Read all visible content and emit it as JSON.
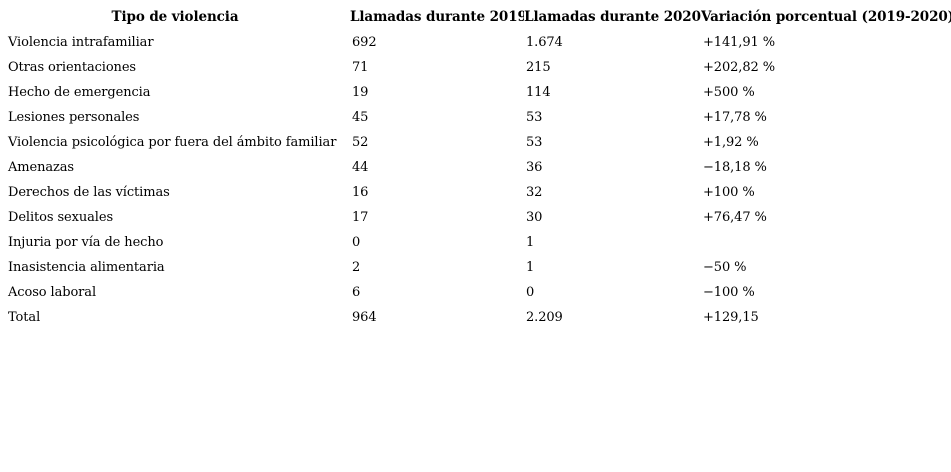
{
  "chart_data": {
    "type": "table",
    "columns": [
      "Tipo de violencia",
      "Llamadas durante 2019",
      "Llamadas durante 2020",
      "Variación porcentual (2019-2020)"
    ],
    "rows": [
      [
        "Violencia intrafamiliar",
        "692",
        "1.674",
        "+141,91 %"
      ],
      [
        "Otras orientaciones",
        "71",
        "215",
        "+202,82 %"
      ],
      [
        "Hecho de emergencia",
        "19",
        "114",
        "+500 %"
      ],
      [
        "Lesiones personales",
        "45",
        "53",
        "+17,78 %"
      ],
      [
        "Violencia psicológica por fuera del ámbito familiar",
        "52",
        "53",
        "+1,92 %"
      ],
      [
        "Amenazas",
        "44",
        "36",
        "−18,18 %"
      ],
      [
        "Derechos de las víctimas",
        "16",
        "32",
        "+100 %"
      ],
      [
        "Delitos sexuales",
        "17",
        "30",
        "+76,47 %"
      ],
      [
        "Injuria por vía de hecho",
        "0",
        "1",
        ""
      ],
      [
        "Inasistencia alimentaria",
        "2",
        "1",
        "−50 %"
      ],
      [
        "Acoso laboral",
        "6",
        "0",
        "−100 %"
      ],
      [
        "Total",
        "964",
        "2.209",
        "+129,15"
      ]
    ],
    "layout": {
      "grid": "off",
      "header_style": "bold",
      "first_column_align": "left",
      "header_align": "center"
    }
  },
  "colors": {
    "text": "#000000",
    "background": "#ffffff"
  }
}
